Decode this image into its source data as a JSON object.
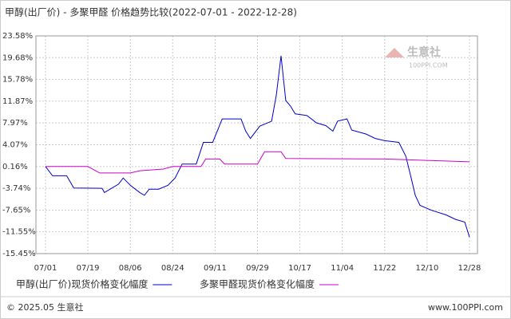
{
  "chart_data": {
    "type": "line",
    "title": "甲醇(出厂价) - 多聚甲醛 价格趋势比较(2022-07-01 - 2022-12-28)",
    "watermark": "生意社",
    "watermark_sub": "100PPI.COM",
    "footer_left": "© 2025.05 生意社",
    "footer_right": "www.100PPI.com",
    "ylim": [
      -15.45,
      23.58
    ],
    "yticks": [
      {
        "value": 23.58,
        "label": "23.58%"
      },
      {
        "value": 19.68,
        "label": "19.68%"
      },
      {
        "value": 15.78,
        "label": "15.78%"
      },
      {
        "value": 11.87,
        "label": "11.87%"
      },
      {
        "value": 7.97,
        "label": "7.97%"
      },
      {
        "value": 4.07,
        "label": "4.07%"
      },
      {
        "value": 0.16,
        "label": "0.16%"
      },
      {
        "value": -3.74,
        "label": "-3.74%"
      },
      {
        "value": -7.65,
        "label": "-7.65%"
      },
      {
        "value": -11.55,
        "label": "-11.55%"
      },
      {
        "value": -15.45,
        "label": "-15.45%"
      }
    ],
    "xticks": [
      "07/01",
      "07/19",
      "08/06",
      "08/24",
      "09/11",
      "09/29",
      "10/17",
      "11/04",
      "11/22",
      "12/10",
      "12/28"
    ],
    "grid": true,
    "series": [
      {
        "name": "甲醇(出厂价)现货价格变化幅度",
        "color": "#0000cc",
        "x": [
          "07/01",
          "07/04",
          "07/10",
          "07/13",
          "07/25",
          "07/26",
          "08/01",
          "08/03",
          "08/06",
          "08/10",
          "08/12",
          "08/14",
          "08/18",
          "08/22",
          "08/25",
          "08/28",
          "09/03",
          "09/06",
          "09/10",
          "09/14",
          "09/22",
          "09/24",
          "09/26",
          "09/30",
          "10/05",
          "10/07",
          "10/09",
          "10/11",
          "10/13",
          "10/15",
          "10/20",
          "10/24",
          "10/28",
          "10/31",
          "11/02",
          "11/06",
          "11/08",
          "11/14",
          "11/18",
          "11/22",
          "11/28",
          "12/01",
          "12/03",
          "12/05",
          "12/07",
          "12/12",
          "12/18",
          "12/22",
          "12/26",
          "12/28"
        ],
        "values": [
          0.16,
          -1.5,
          -1.5,
          -3.7,
          -3.74,
          -4.5,
          -3.0,
          -1.9,
          -3.2,
          -4.5,
          -5.0,
          -3.9,
          -3.9,
          -3.2,
          -1.9,
          0.6,
          0.6,
          4.5,
          4.5,
          8.7,
          8.7,
          6.5,
          5.2,
          7.4,
          8.3,
          13.0,
          20.0,
          12.0,
          11.0,
          9.6,
          9.3,
          8.0,
          7.5,
          6.5,
          8.3,
          8.7,
          6.7,
          6.0,
          5.2,
          4.8,
          4.5,
          2.0,
          -1.5,
          -5.0,
          -6.8,
          -7.7,
          -8.5,
          -9.3,
          -9.8,
          -12.5
        ]
      },
      {
        "name": "多聚甲醛现货价格变化幅度",
        "color": "#cc00cc",
        "x": [
          "07/01",
          "07/19",
          "07/24",
          "08/06",
          "08/10",
          "08/20",
          "08/24",
          "09/05",
          "09/07",
          "09/13",
          "09/15",
          "09/29",
          "10/02",
          "10/09",
          "10/11",
          "11/22",
          "12/28"
        ],
        "values": [
          0.16,
          0.16,
          -1.0,
          -1.0,
          -0.6,
          -0.3,
          0.16,
          0.16,
          1.5,
          1.5,
          0.6,
          0.6,
          2.8,
          2.8,
          1.6,
          1.5,
          1.0
        ]
      }
    ]
  }
}
